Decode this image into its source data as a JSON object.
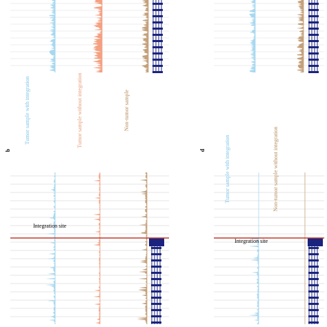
{
  "panels": [
    {
      "label": "b",
      "tracks": [
        "Tumor sample with integration",
        "Tumor sample without integration",
        "Non-tumor sample"
      ]
    },
    {
      "label": "d",
      "tracks": [
        "Tumor sample with integration",
        "Non-tumor sample without integration"
      ]
    }
  ],
  "annotations": [
    "Integration site",
    "Integration site"
  ]
}
